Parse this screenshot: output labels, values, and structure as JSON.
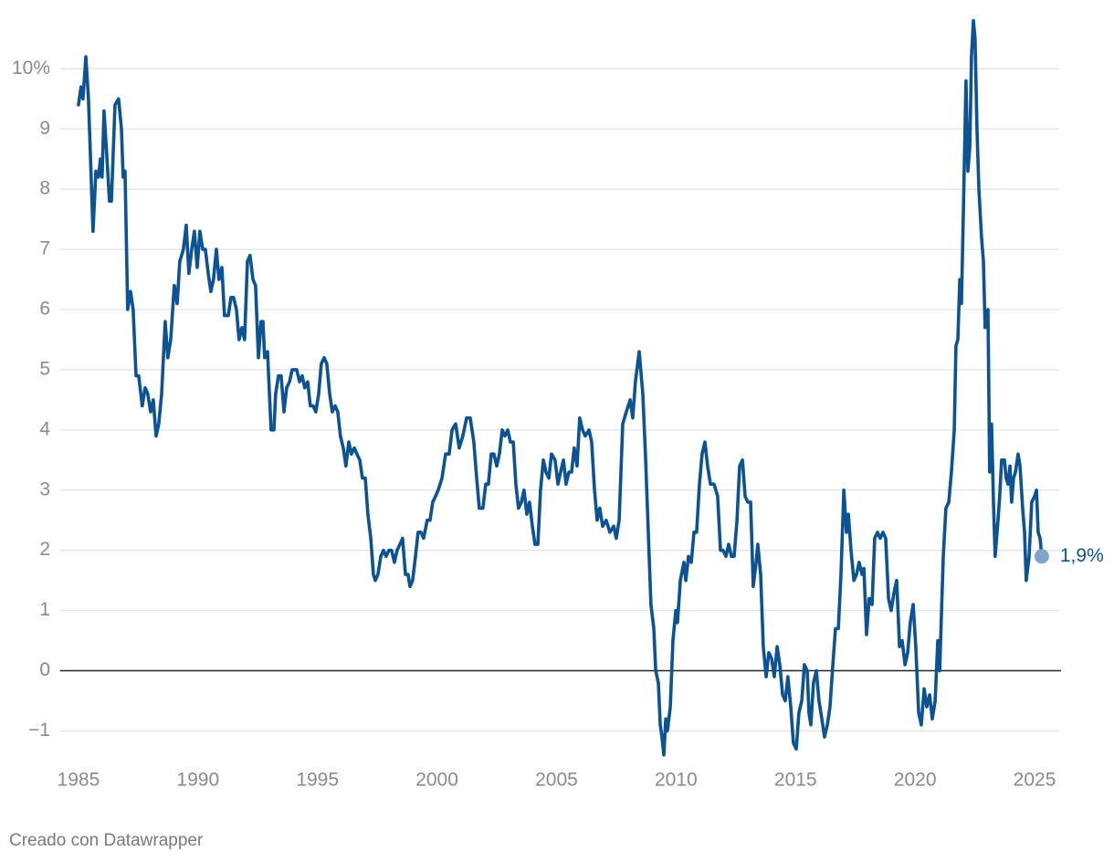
{
  "chart_data": {
    "type": "line",
    "x": [
      1985.0,
      1985.11,
      1985.19,
      1985.31,
      1985.42,
      1985.61,
      1985.73,
      1985.84,
      1985.92,
      1985.99,
      1986.07,
      1986.18,
      1986.3,
      1986.38,
      1986.53,
      1986.68,
      1986.8,
      1986.87,
      1986.95,
      1987.06,
      1987.18,
      1987.29,
      1987.41,
      1987.52,
      1987.67,
      1987.79,
      1987.9,
      1988.02,
      1988.13,
      1988.25,
      1988.36,
      1988.48,
      1988.63,
      1988.74,
      1988.86,
      1989.01,
      1989.13,
      1989.24,
      1989.39,
      1989.51,
      1989.62,
      1989.74,
      1989.85,
      1989.97,
      1990.08,
      1990.2,
      1990.31,
      1990.43,
      1990.54,
      1990.65,
      1990.77,
      1990.88,
      1991.0,
      1991.11,
      1991.27,
      1991.38,
      1991.49,
      1991.61,
      1991.72,
      1991.84,
      1991.95,
      1992.07,
      1992.18,
      1992.3,
      1992.41,
      1992.53,
      1992.64,
      1992.72,
      1992.79,
      1992.91,
      1993.06,
      1993.18,
      1993.25,
      1993.37,
      1993.48,
      1993.6,
      1993.71,
      1993.83,
      1993.94,
      1994.13,
      1994.25,
      1994.36,
      1994.47,
      1994.59,
      1994.7,
      1994.82,
      1994.93,
      1995.05,
      1995.16,
      1995.28,
      1995.39,
      1995.51,
      1995.62,
      1995.74,
      1995.85,
      1995.96,
      1996.08,
      1996.19,
      1996.31,
      1996.42,
      1996.54,
      1996.65,
      1996.77,
      1996.88,
      1997.0,
      1997.11,
      1997.23,
      1997.34,
      1997.42,
      1997.53,
      1997.65,
      1997.76,
      1997.87,
      1997.99,
      1998.1,
      1998.22,
      1998.33,
      1998.45,
      1998.56,
      1998.68,
      1998.79,
      1998.87,
      1998.98,
      1999.1,
      1999.21,
      1999.33,
      1999.44,
      1999.59,
      1999.71,
      1999.82,
      1999.94,
      2000.05,
      2000.21,
      2000.36,
      2000.51,
      2000.63,
      2000.78,
      2000.93,
      2001.08,
      2001.24,
      2001.39,
      2001.54,
      2001.66,
      2001.77,
      2001.92,
      2002.04,
      2002.15,
      2002.27,
      2002.38,
      2002.5,
      2002.61,
      2002.73,
      2002.84,
      2002.96,
      2003.07,
      2003.19,
      2003.3,
      2003.41,
      2003.53,
      2003.64,
      2003.76,
      2003.87,
      2003.99,
      2004.1,
      2004.22,
      2004.33,
      2004.45,
      2004.56,
      2004.68,
      2004.79,
      2004.94,
      2005.06,
      2005.17,
      2005.29,
      2005.4,
      2005.52,
      2005.63,
      2005.74,
      2005.86,
      2005.97,
      2006.09,
      2006.2,
      2006.36,
      2006.47,
      2006.59,
      2006.7,
      2006.81,
      2006.93,
      2007.08,
      2007.23,
      2007.39,
      2007.5,
      2007.62,
      2007.77,
      2007.92,
      2008.08,
      2008.19,
      2008.3,
      2008.46,
      2008.61,
      2008.72,
      2008.84,
      2008.95,
      2009.07,
      2009.15,
      2009.26,
      2009.34,
      2009.41,
      2009.49,
      2009.57,
      2009.64,
      2009.76,
      2009.87,
      2009.99,
      2010.06,
      2010.18,
      2010.33,
      2010.41,
      2010.52,
      2010.64,
      2010.75,
      2010.86,
      2010.98,
      2011.09,
      2011.21,
      2011.32,
      2011.44,
      2011.59,
      2011.74,
      2011.86,
      2011.97,
      2012.09,
      2012.2,
      2012.32,
      2012.43,
      2012.55,
      2012.66,
      2012.78,
      2012.89,
      2013.0,
      2013.12,
      2013.23,
      2013.35,
      2013.42,
      2013.54,
      2013.65,
      2013.77,
      2013.88,
      2014.0,
      2014.11,
      2014.23,
      2014.34,
      2014.46,
      2014.57,
      2014.68,
      2014.8,
      2014.91,
      2015.03,
      2015.14,
      2015.26,
      2015.37,
      2015.49,
      2015.56,
      2015.64,
      2015.75,
      2015.87,
      2015.98,
      2016.1,
      2016.21,
      2016.33,
      2016.44,
      2016.56,
      2016.67,
      2016.79,
      2016.9,
      2017.02,
      2017.13,
      2017.21,
      2017.32,
      2017.44,
      2017.55,
      2017.66,
      2017.78,
      2017.86,
      2017.97,
      2018.08,
      2018.2,
      2018.31,
      2018.43,
      2018.54,
      2018.66,
      2018.77,
      2018.89,
      2019.0,
      2019.12,
      2019.23,
      2019.35,
      2019.46,
      2019.58,
      2019.69,
      2019.8,
      2019.92,
      2020.03,
      2020.15,
      2020.26,
      2020.38,
      2020.49,
      2020.61,
      2020.72,
      2020.84,
      2020.95,
      2021.03,
      2021.1,
      2021.18,
      2021.29,
      2021.41,
      2021.52,
      2021.64,
      2021.71,
      2021.79,
      2021.87,
      2021.94,
      2022.02,
      2022.13,
      2022.21,
      2022.29,
      2022.36,
      2022.44,
      2022.51,
      2022.59,
      2022.67,
      2022.78,
      2022.86,
      2022.93,
      2023.05,
      2023.12,
      2023.2,
      2023.28,
      2023.35,
      2023.47,
      2023.54,
      2023.62,
      2023.74,
      2023.81,
      2023.89,
      2023.97,
      2024.04,
      2024.12,
      2024.2,
      2024.31,
      2024.39,
      2024.5,
      2024.58,
      2024.65,
      2024.77,
      2024.88,
      2025.0,
      2025.08,
      2025.15,
      2025.23,
      2025.3
    ],
    "values": [
      9.4,
      9.7,
      9.5,
      10.2,
      9.5,
      7.3,
      8.3,
      8.2,
      8.5,
      8.2,
      9.3,
      8.6,
      7.8,
      7.8,
      9.4,
      9.5,
      9.0,
      8.2,
      8.3,
      6.0,
      6.3,
      6.0,
      4.9,
      4.9,
      4.4,
      4.7,
      4.6,
      4.3,
      4.5,
      3.9,
      4.1,
      4.6,
      5.8,
      5.2,
      5.5,
      6.4,
      6.1,
      6.8,
      7.0,
      7.4,
      6.6,
      7.0,
      7.3,
      6.7,
      7.3,
      7.0,
      7.0,
      6.6,
      6.3,
      6.5,
      7.0,
      6.5,
      6.7,
      5.9,
      5.9,
      6.2,
      6.2,
      6.0,
      5.5,
      5.7,
      5.5,
      6.8,
      6.9,
      6.5,
      6.4,
      5.2,
      5.8,
      5.8,
      5.2,
      5.3,
      4.0,
      4.0,
      4.6,
      4.9,
      4.9,
      4.3,
      4.7,
      4.8,
      5.0,
      5.0,
      4.8,
      4.9,
      4.7,
      4.8,
      4.4,
      4.4,
      4.3,
      4.6,
      5.1,
      5.2,
      5.1,
      4.6,
      4.3,
      4.4,
      4.3,
      3.9,
      3.7,
      3.4,
      3.8,
      3.6,
      3.7,
      3.6,
      3.5,
      3.2,
      3.2,
      2.6,
      2.2,
      1.6,
      1.5,
      1.6,
      1.9,
      2.0,
      1.9,
      2.0,
      2.0,
      1.8,
      2.0,
      2.1,
      2.2,
      1.6,
      1.6,
      1.4,
      1.5,
      1.9,
      2.3,
      2.3,
      2.2,
      2.5,
      2.5,
      2.8,
      2.9,
      3.0,
      3.2,
      3.6,
      3.6,
      4.0,
      4.1,
      3.7,
      3.9,
      4.2,
      4.2,
      3.8,
      3.2,
      2.7,
      2.7,
      3.1,
      3.1,
      3.6,
      3.6,
      3.4,
      3.6,
      4.0,
      3.9,
      4.0,
      3.8,
      3.8,
      3.1,
      2.7,
      2.8,
      3.0,
      2.6,
      2.8,
      2.4,
      2.1,
      2.1,
      3.0,
      3.5,
      3.3,
      3.2,
      3.6,
      3.5,
      3.1,
      3.3,
      3.5,
      3.1,
      3.3,
      3.3,
      3.7,
      3.4,
      4.2,
      4.0,
      3.9,
      4.0,
      3.8,
      3.0,
      2.5,
      2.7,
      2.4,
      2.5,
      2.3,
      2.4,
      2.2,
      2.5,
      4.1,
      4.3,
      4.5,
      4.2,
      4.8,
      5.3,
      4.6,
      3.6,
      2.3,
      1.1,
      0.7,
      0.0,
      -0.2,
      -0.9,
      -1.1,
      -1.4,
      -0.8,
      -1.0,
      -0.6,
      0.5,
      1.0,
      0.8,
      1.5,
      1.8,
      1.5,
      1.9,
      1.8,
      2.3,
      2.3,
      3.1,
      3.6,
      3.8,
      3.4,
      3.1,
      3.1,
      2.9,
      2.0,
      2.0,
      1.9,
      2.1,
      1.9,
      1.9,
      2.5,
      3.4,
      3.5,
      2.9,
      2.8,
      2.8,
      1.4,
      1.8,
      2.1,
      1.6,
      0.4,
      -0.1,
      0.3,
      0.2,
      -0.1,
      0.4,
      0.1,
      -0.4,
      -0.5,
      -0.1,
      -0.6,
      -1.2,
      -1.3,
      -0.7,
      -0.5,
      0.1,
      0.0,
      -0.7,
      -0.9,
      -0.2,
      0.0,
      -0.5,
      -0.8,
      -1.1,
      -0.9,
      -0.6,
      0.1,
      0.7,
      0.7,
      1.6,
      3.0,
      2.3,
      2.6,
      2.0,
      1.5,
      1.6,
      1.8,
      1.6,
      1.7,
      0.6,
      1.2,
      1.1,
      2.2,
      2.3,
      2.2,
      2.3,
      2.2,
      1.2,
      1.0,
      1.3,
      1.5,
      0.4,
      0.5,
      0.1,
      0.3,
      0.8,
      1.1,
      0.4,
      -0.7,
      -0.9,
      -0.3,
      -0.6,
      -0.4,
      -0.8,
      -0.5,
      0.5,
      0.0,
      0.9,
      1.9,
      2.7,
      2.8,
      3.3,
      4.0,
      5.4,
      5.5,
      6.5,
      6.1,
      7.6,
      9.8,
      8.3,
      8.7,
      10.2,
      10.8,
      10.5,
      9.0,
      8.0,
      7.2,
      6.8,
      5.7,
      6.0,
      3.3,
      4.1,
      2.8,
      1.9,
      2.5,
      2.9,
      3.5,
      3.5,
      3.2,
      3.1,
      3.4,
      2.8,
      3.2,
      3.3,
      3.6,
      3.4,
      2.7,
      2.3,
      1.5,
      1.9,
      2.8,
      2.9,
      3.0,
      2.3,
      2.2,
      1.9
    ],
    "color": "#0b5394",
    "end_label": "1,9%",
    "xlim": [
      1984.24,
      2026.03
    ],
    "xticks": [
      1985,
      1990,
      1995,
      2000,
      2005,
      2010,
      2015,
      2020,
      2025
    ],
    "ylim": [
      -1.6,
      10.9
    ],
    "yticks": [
      {
        "value": -1,
        "label": "−1"
      },
      0,
      1,
      2,
      3,
      4,
      5,
      6,
      7,
      8,
      9,
      {
        "value": 10,
        "label": "10%"
      }
    ],
    "grid": true,
    "source": "Creado con Datawrapper"
  }
}
